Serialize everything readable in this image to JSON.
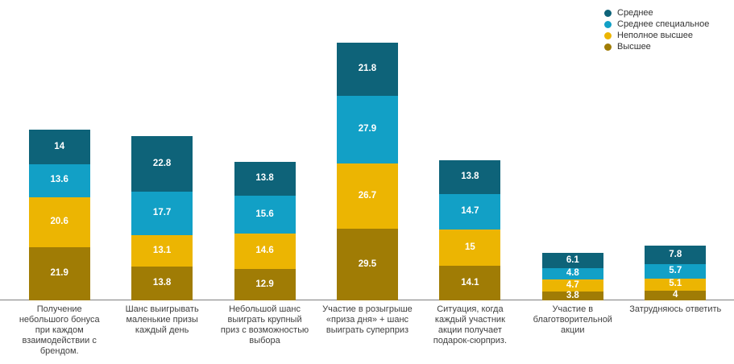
{
  "chart_data": {
    "type": "bar",
    "stacked": true,
    "title": "",
    "xlabel": "",
    "ylabel": "",
    "ylim": [
      0,
      110
    ],
    "grid": false,
    "legend_position": "top-right",
    "stack_order": "first series on top of stack",
    "categories": [
      "Получение небольшого бонуса при каждом взаимодействии с брендом.",
      "Шанс выигрывать маленькие призы каждый день",
      "Небольшой шанс выиграть крупный приз с возможностью выбора",
      "Участие в розыгрыше «приза дня» + шанс выиграть суперприз",
      "Ситуация, когда каждый участник акции получает подарок-сюрприз.",
      "Участие в благотворительной акции",
      "Затрудняюсь ответить"
    ],
    "series": [
      {
        "name": "Среднее",
        "color": "#0e6379",
        "values": [
          14,
          22.8,
          13.8,
          21.8,
          13.8,
          6.1,
          7.8
        ]
      },
      {
        "name": "Среднее специальное",
        "color": "#12a0c6",
        "values": [
          13.6,
          17.7,
          15.6,
          27.9,
          14.7,
          4.8,
          5.7
        ]
      },
      {
        "name": "Неполное высшее",
        "color": "#ecb502",
        "values": [
          20.6,
          13.1,
          14.6,
          26.7,
          15,
          4.7,
          5.1
        ]
      },
      {
        "name": "Высшее",
        "color": "#a07c05",
        "values": [
          21.9,
          13.8,
          12.9,
          29.5,
          14.1,
          3.8,
          4
        ]
      }
    ],
    "value_labels": {
      "show": true,
      "color": "#ffffff",
      "bold": true
    },
    "colors": {
      "axis_line": "#7f7f7f",
      "tick_label_text": "#404040",
      "legend_text": "#333333",
      "background": "#ffffff"
    }
  }
}
